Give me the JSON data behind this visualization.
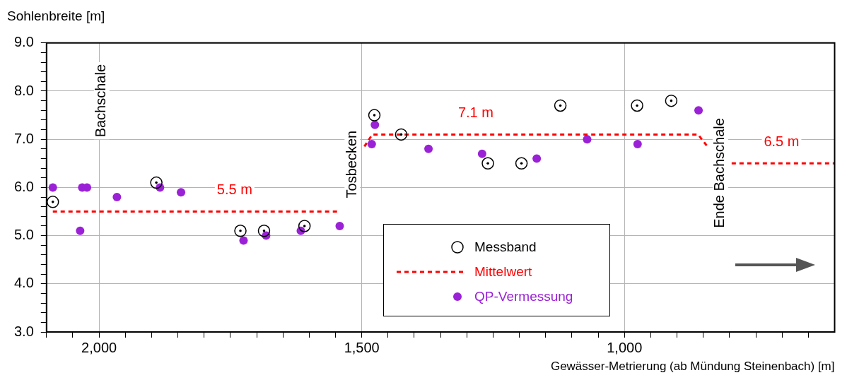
{
  "chart_data": {
    "type": "scatter",
    "ylabel": "Sohlenbreite [m]",
    "xlabel": "Gewässer-Metrierung (ab Mündung Steinenbach) [m]",
    "xlim": [
      2100,
      600
    ],
    "ylim": [
      3,
      9
    ],
    "xticks": [
      {
        "value": 2100,
        "label": null
      },
      {
        "value": 2050,
        "label": null
      },
      {
        "value": 2000,
        "label": "2,000"
      },
      {
        "value": 1950,
        "label": null
      },
      {
        "value": 1900,
        "label": null
      },
      {
        "value": 1850,
        "label": null
      },
      {
        "value": 1800,
        "label": null
      },
      {
        "value": 1750,
        "label": null
      },
      {
        "value": 1700,
        "label": null
      },
      {
        "value": 1650,
        "label": null
      },
      {
        "value": 1600,
        "label": null
      },
      {
        "value": 1550,
        "label": null
      },
      {
        "value": 1500,
        "label": "1,500"
      },
      {
        "value": 1450,
        "label": null
      },
      {
        "value": 1400,
        "label": null
      },
      {
        "value": 1350,
        "label": null
      },
      {
        "value": 1300,
        "label": null
      },
      {
        "value": 1250,
        "label": null
      },
      {
        "value": 1200,
        "label": null
      },
      {
        "value": 1150,
        "label": null
      },
      {
        "value": 1100,
        "label": null
      },
      {
        "value": 1050,
        "label": null
      },
      {
        "value": 1000,
        "label": "1,000"
      },
      {
        "value": 950,
        "label": null
      },
      {
        "value": 900,
        "label": null
      },
      {
        "value": 850,
        "label": null
      },
      {
        "value": 800,
        "label": null
      },
      {
        "value": 750,
        "label": null
      },
      {
        "value": 700,
        "label": null
      },
      {
        "value": 650,
        "label": null
      }
    ],
    "yticks": [
      {
        "value": 3,
        "label": "3.0"
      },
      {
        "value": 3.2,
        "label": null
      },
      {
        "value": 3.4,
        "label": null
      },
      {
        "value": 3.6,
        "label": null
      },
      {
        "value": 3.8,
        "label": null
      },
      {
        "value": 4,
        "label": "4.0"
      },
      {
        "value": 4.2,
        "label": null
      },
      {
        "value": 4.4,
        "label": null
      },
      {
        "value": 4.6,
        "label": null
      },
      {
        "value": 4.8,
        "label": null
      },
      {
        "value": 5,
        "label": "5.0"
      },
      {
        "value": 5.2,
        "label": null
      },
      {
        "value": 5.4,
        "label": null
      },
      {
        "value": 5.6,
        "label": null
      },
      {
        "value": 5.8,
        "label": null
      },
      {
        "value": 6,
        "label": "6.0"
      },
      {
        "value": 6.2,
        "label": null
      },
      {
        "value": 6.4,
        "label": null
      },
      {
        "value": 6.6,
        "label": null
      },
      {
        "value": 6.8,
        "label": null
      },
      {
        "value": 7,
        "label": "7.0"
      },
      {
        "value": 7.2,
        "label": null
      },
      {
        "value": 7.4,
        "label": null
      },
      {
        "value": 7.6,
        "label": null
      },
      {
        "value": 7.8,
        "label": null
      },
      {
        "value": 8,
        "label": "8.0"
      },
      {
        "value": 8.2,
        "label": null
      },
      {
        "value": 8.4,
        "label": null
      },
      {
        "value": 8.6,
        "label": null
      },
      {
        "value": 8.8,
        "label": null
      },
      {
        "value": 9,
        "label": "9.0"
      }
    ],
    "grid": true,
    "legend": "bottom",
    "series": [
      {
        "name": "Messband",
        "type": "scatter",
        "marker": "circle",
        "color": "#000000",
        "x": [
          2088,
          1891,
          1731,
          1686,
          1609,
          1476,
          1425,
          1260,
          1196,
          1122,
          976,
          911
        ],
        "values": [
          5.7,
          6.1,
          5.1,
          5.1,
          5.2,
          7.5,
          7.1,
          6.5,
          6.5,
          7.7,
          7.7,
          7.8
        ]
      },
      {
        "name": "Mittelwert",
        "type": "line",
        "marker": "none",
        "line_style": "dashed",
        "color": "#ff0000",
        "x": [
          2088,
          1742,
          1541,
          1518,
          1495,
          1480,
          1283,
          860,
          842,
          820,
          796,
          701,
          600
        ],
        "values": [
          5.5,
          5.5,
          5.5,
          null,
          6.85,
          7.1,
          7.1,
          7.1,
          6.85,
          null,
          6.5,
          6.5,
          6.5
        ],
        "value_labels": [
          null,
          "5.5 m",
          null,
          null,
          null,
          null,
          "7.1 m",
          null,
          null,
          null,
          null,
          "6.5 m",
          null
        ]
      },
      {
        "name": "QP-Vermessung",
        "type": "scatter",
        "marker": "circle",
        "color": "#9a21d6",
        "x": [
          2088,
          2036,
          2032,
          2023,
          1966,
          1884,
          1844,
          1725,
          1682,
          1616,
          1542,
          1481,
          1475,
          1373,
          1271,
          1167,
          1071,
          975,
          859
        ],
        "values": [
          6.0,
          5.1,
          6.0,
          6.0,
          5.8,
          6.0,
          5.9,
          4.9,
          5.0,
          5.1,
          5.2,
          6.9,
          7.3,
          6.8,
          6.7,
          6.6,
          7.0,
          6.9,
          7.6
        ]
      }
    ],
    "annotations": [
      "Bachschale",
      "Tosbecken",
      "Ende Bachschale"
    ]
  }
}
